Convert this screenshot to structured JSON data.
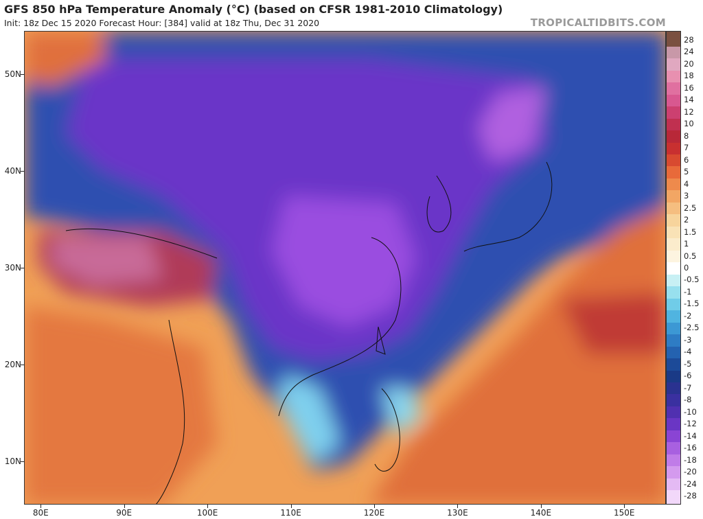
{
  "header": {
    "title": "GFS 850 hPa Temperature Anomaly (°C) (based on CFSR 1981-2010 Climatology)",
    "subtitle": "Init: 18z Dec 15 2020   Forecast Hour: [384]   valid at 18z Thu, Dec 31 2020",
    "brand": "TROPICALTIDBITS.COM"
  },
  "map": {
    "lat_labels": [
      "50N",
      "40N",
      "30N",
      "20N",
      "10N"
    ],
    "lon_labels": [
      "80E",
      "90E",
      "100E",
      "110E",
      "120E",
      "130E",
      "140E",
      "150E"
    ],
    "lat_values": [
      50,
      40,
      30,
      20,
      10
    ],
    "lon_values": [
      80,
      90,
      100,
      110,
      120,
      130,
      140,
      150
    ],
    "lat_range": [
      5.5,
      54.5
    ],
    "lon_range": [
      78,
      155
    ],
    "regions": [
      {
        "name": "cold-anomaly-china",
        "color": "#8a3ae0"
      },
      {
        "name": "warm-anomaly-pacific",
        "color": "#d8492a"
      },
      {
        "name": "warm-anomaly-tibet",
        "color": "#b03060"
      }
    ]
  },
  "colorbar": {
    "labels": [
      "28",
      "24",
      "20",
      "18",
      "16",
      "14",
      "12",
      "10",
      "8",
      "7",
      "6",
      "5",
      "4",
      "3",
      "2.5",
      "2",
      "1.5",
      "1",
      "0.5",
      "0",
      "-0.5",
      "-1",
      "-1.5",
      "-2",
      "-2.5",
      "-3",
      "-4",
      "-5",
      "-6",
      "-7",
      "-8",
      "-10",
      "-12",
      "-14",
      "-16",
      "-18",
      "-20",
      "-24",
      "-28"
    ],
    "colors": [
      "#7a5040",
      "#c898a8",
      "#e0a8c0",
      "#e890b0",
      "#e070a0",
      "#d85890",
      "#cc4070",
      "#c03050",
      "#b82838",
      "#c83030",
      "#d84a30",
      "#e86a3a",
      "#ee8a4c",
      "#f2a664",
      "#f5be80",
      "#f7d49c",
      "#f9e2b6",
      "#fbeccc",
      "#fdf4e0",
      "#ffffff",
      "#c8f0f4",
      "#98e0ee",
      "#70cce8",
      "#50b4e0",
      "#3c98d4",
      "#2e7cc4",
      "#2462b0",
      "#1c4a98",
      "#1a3a86",
      "#2a3290",
      "#3a30a0",
      "#5030b0",
      "#6a36c4",
      "#8a44d4",
      "#a860e0",
      "#c07ce8",
      "#d49aee",
      "#e4baf4",
      "#f2d8fa"
    ]
  }
}
